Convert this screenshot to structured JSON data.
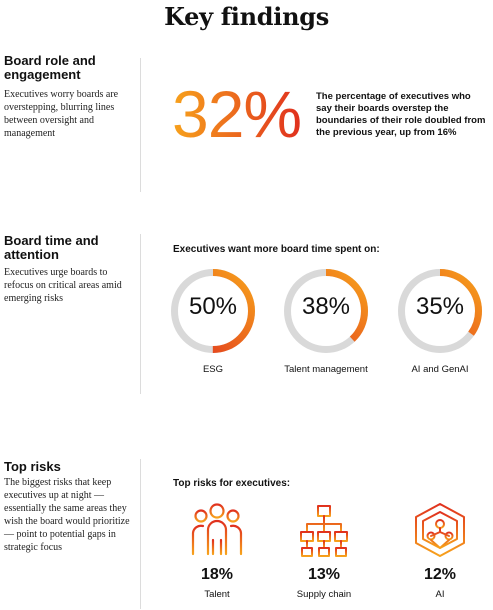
{
  "title": "Key findings",
  "sections": [
    {
      "title": "Board role and engagement",
      "description": "Executives worry boards are overstepping, blurring lines between oversight and management"
    },
    {
      "title": "Board time and attention",
      "description": "Executives urge boards to refocus on critical areas amid emerging risks"
    },
    {
      "title": "Top risks",
      "description": "The biggest risks that keep executives up at night — essentially the same areas they wish the board would prioritize — point to potential gaps in strategic focus"
    }
  ],
  "board_role": {
    "stat": "32%",
    "stat_value": 32,
    "description": "The percentage of executives who say their boards overstep the boundaries of their role doubled from the previous year, up from 16%"
  },
  "board_time": {
    "heading": "Executives want more board time spent on:",
    "items": [
      {
        "label": "ESG",
        "percent_text": "50%",
        "value": 50
      },
      {
        "label": "Talent management",
        "percent_text": "38%",
        "value": 38
      },
      {
        "label": "AI and GenAI",
        "percent_text": "35%",
        "value": 35
      }
    ]
  },
  "top_risks": {
    "heading": "Top risks for executives:",
    "items": [
      {
        "label": "Talent",
        "percent_text": "18%",
        "icon": "people-group-icon"
      },
      {
        "label": "Supply chain",
        "percent_text": "13%",
        "icon": "supply-chain-network-icon"
      },
      {
        "label": "AI",
        "percent_text": "12%",
        "icon": "ai-chip-icon"
      }
    ]
  },
  "colors": {
    "accent_orange": "#f28a1a",
    "accent_red": "#e0301e",
    "ring_gray": "#d9d9d9",
    "divider": "#dcdcdc"
  }
}
